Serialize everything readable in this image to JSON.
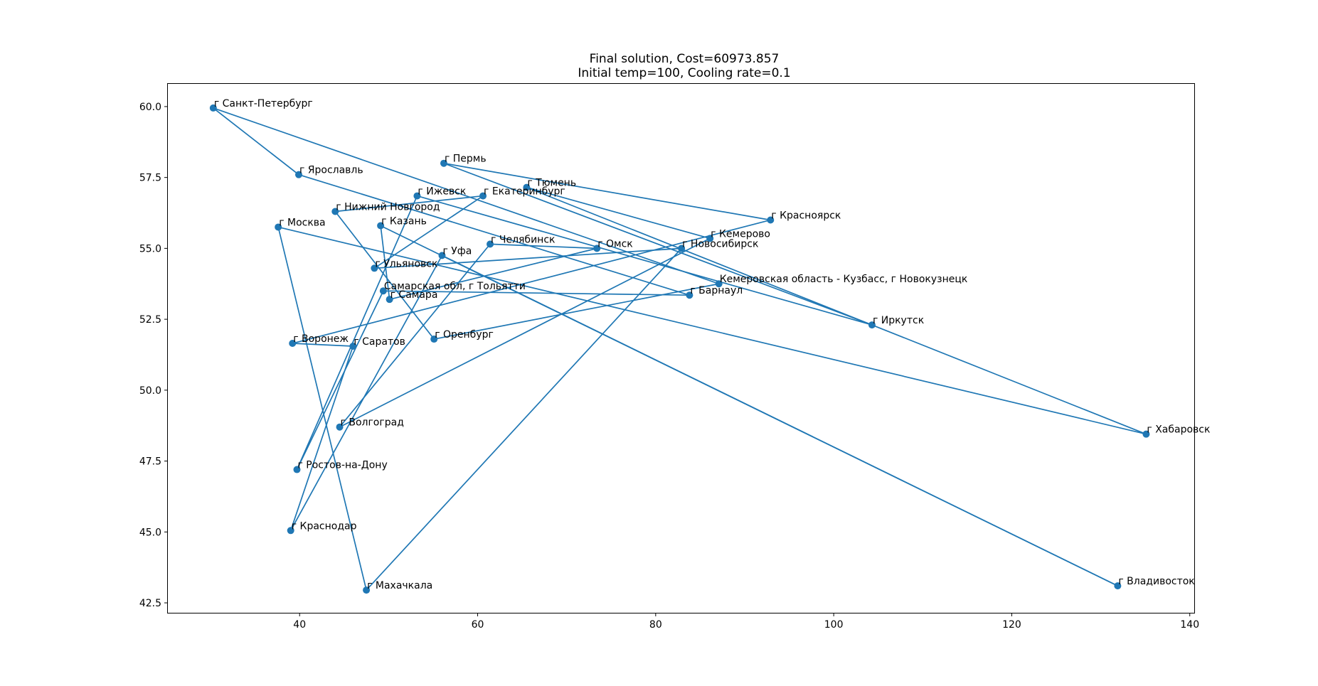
{
  "chart_data": {
    "type": "line",
    "title_lines": [
      "Final solution, Cost=60973.857",
      "Initial temp=100, Cooling rate=0.1"
    ],
    "xlabel": "",
    "ylabel": "",
    "xlim": [
      25.2,
      140.5
    ],
    "ylim": [
      42.15,
      60.8
    ],
    "xticks": [
      40,
      60,
      80,
      100,
      120,
      140
    ],
    "yticks": [
      42.5,
      45.0,
      47.5,
      50.0,
      52.5,
      55.0,
      57.5,
      60.0
    ],
    "ytick_labels": [
      "42.5",
      "45.0",
      "47.5",
      "50.0",
      "52.5",
      "55.0",
      "57.5",
      "60.0"
    ],
    "grid": false,
    "colors": {
      "line": "#1f77b4",
      "marker": "#1f77b4",
      "frame": "#000000"
    },
    "cities": [
      {
        "name": "г Санкт-Петербург",
        "x": 30.3,
        "y": 59.95
      },
      {
        "name": "г Ярославль",
        "x": 39.9,
        "y": 57.6
      },
      {
        "name": "г Пермь",
        "x": 56.2,
        "y": 58.0
      },
      {
        "name": "г Тюмень",
        "x": 65.5,
        "y": 57.15
      },
      {
        "name": "г Ижевск",
        "x": 53.2,
        "y": 56.85
      },
      {
        "name": "г Екатеринбург",
        "x": 60.6,
        "y": 56.85
      },
      {
        "name": "г Нижний Новгород",
        "x": 44.0,
        "y": 56.3
      },
      {
        "name": "г Казань",
        "x": 49.1,
        "y": 55.8
      },
      {
        "name": "г Москва",
        "x": 37.6,
        "y": 55.75
      },
      {
        "name": "г Красноярск",
        "x": 92.9,
        "y": 56.0
      },
      {
        "name": "г Кемерово",
        "x": 86.1,
        "y": 55.35
      },
      {
        "name": "г Челябинск",
        "x": 61.4,
        "y": 55.15
      },
      {
        "name": "г Омск",
        "x": 73.4,
        "y": 55.0
      },
      {
        "name": "г Новосибирск",
        "x": 82.9,
        "y": 55.0
      },
      {
        "name": "г Уфа",
        "x": 56.0,
        "y": 54.75
      },
      {
        "name": "г Ульяновск",
        "x": 48.4,
        "y": 54.3
      },
      {
        "name": "Кемеровская область - Кузбасс, г Новокузнецк",
        "x": 87.1,
        "y": 53.75
      },
      {
        "name": "Самарская обл, г Тольятти",
        "x": 49.4,
        "y": 53.5
      },
      {
        "name": "г Барнаул",
        "x": 83.8,
        "y": 53.35
      },
      {
        "name": "г Самара",
        "x": 50.1,
        "y": 53.2
      },
      {
        "name": "г Иркутск",
        "x": 104.3,
        "y": 52.3
      },
      {
        "name": "г Воронеж",
        "x": 39.2,
        "y": 51.65
      },
      {
        "name": "г Саратов",
        "x": 46.0,
        "y": 51.55
      },
      {
        "name": "г Оренбург",
        "x": 55.1,
        "y": 51.8
      },
      {
        "name": "г Волгоград",
        "x": 44.5,
        "y": 48.7
      },
      {
        "name": "г Хабаровск",
        "x": 135.1,
        "y": 48.45
      },
      {
        "name": "г Ростов-на-Дону",
        "x": 39.7,
        "y": 47.2
      },
      {
        "name": "г Краснодар",
        "x": 39.0,
        "y": 45.05
      },
      {
        "name": "г Владивосток",
        "x": 131.9,
        "y": 43.1
      },
      {
        "name": "г Махачкала",
        "x": 47.5,
        "y": 42.95
      }
    ],
    "route": [
      "г Санкт-Петербург",
      "г Ярославль",
      "г Барнаул",
      "Самарская обл, г Тольятти",
      "г Ростов-на-Дону",
      "г Ижевск",
      "г Иркутск",
      "г Пермь",
      "г Красноярск",
      "г Воронеж",
      "г Саратов",
      "г Краснодар",
      "г Уфа",
      "г Владивосток",
      "г Казань",
      "г Самара",
      "г Омск",
      "г Челябинск",
      "г Волгоград",
      "г Кемерово",
      "г Тюмень",
      "г Хабаровск",
      "г Москва",
      "г Махачкала",
      "г Новосибирск",
      "г Ульяновск",
      "г Екатеринбург",
      "г Нижний Новгород",
      "г Оренбург",
      "Кемеровская область - Кузбасс, г Новокузнецк",
      "г Санкт-Петербург"
    ]
  }
}
